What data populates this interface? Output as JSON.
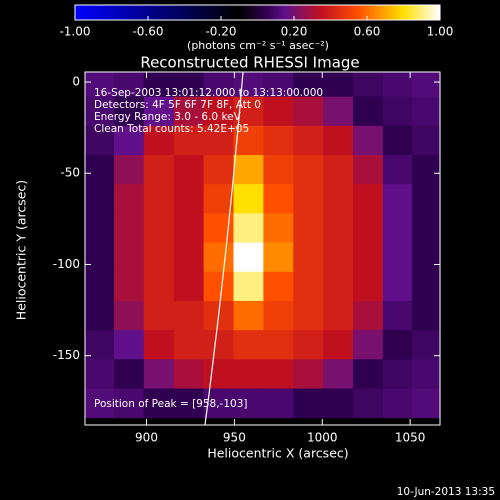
{
  "chart_data": {
    "type": "heatmap",
    "title": "Reconstructed RHESSI Image",
    "x_label": "Heliocentric X (arcsec)",
    "y_label": "Heliocentric Y (arcsec)",
    "colorbar_label": "(photons cm⁻² s⁻¹ asec⁻²)",
    "clim": [
      -1,
      1
    ],
    "cticks": [
      {
        "value": -1,
        "label": "-1.00"
      },
      {
        "value": -0.6,
        "label": "-0.60"
      },
      {
        "value": -0.2,
        "label": "-0.20"
      },
      {
        "value": 0.2,
        "label": "0.20"
      },
      {
        "value": 0.6,
        "label": "0.60"
      },
      {
        "value": 1,
        "label": "1.00"
      }
    ],
    "colorscale": [
      [
        -1,
        "#0000ff"
      ],
      [
        -0.1,
        "#000000"
      ],
      [
        0.05,
        "#300050"
      ],
      [
        0.15,
        "#60108a"
      ],
      [
        0.35,
        "#c01020"
      ],
      [
        0.55,
        "#ff5000"
      ],
      [
        0.8,
        "#ffe000"
      ],
      [
        1,
        "#ffffff"
      ]
    ],
    "xlim": [
      865,
      1067
    ],
    "ylim": [
      -188,
      5.5
    ],
    "xticks": [
      900,
      950,
      1000,
      1050
    ],
    "yticks": [
      0,
      -50,
      -100,
      -150
    ],
    "x": [
      873,
      890,
      907,
      924,
      941,
      958,
      975,
      992,
      1009,
      1026,
      1043,
      1059
    ],
    "y": [
      0,
      -16,
      -32,
      -48,
      -64,
      -80,
      -96,
      -112,
      -128,
      -144,
      -160,
      -176
    ],
    "z": [
      [
        0.12,
        0.1,
        0.05,
        0.05,
        0.1,
        0.12,
        0.1,
        0.05,
        0.05,
        0.08,
        0.1,
        0.12
      ],
      [
        0.1,
        0.05,
        0.15,
        0.3,
        0.35,
        0.4,
        0.35,
        0.3,
        0.2,
        0.05,
        0.08,
        0.1
      ],
      [
        0.08,
        0.15,
        0.35,
        0.4,
        0.4,
        0.5,
        0.45,
        0.4,
        0.35,
        0.2,
        0.05,
        0.08
      ],
      [
        0.05,
        0.25,
        0.4,
        0.35,
        0.45,
        0.7,
        0.5,
        0.45,
        0.4,
        0.3,
        0.1,
        0.05
      ],
      [
        0.05,
        0.3,
        0.4,
        0.35,
        0.5,
        0.8,
        0.55,
        0.45,
        0.4,
        0.35,
        0.15,
        0.05
      ],
      [
        0.05,
        0.3,
        0.4,
        0.35,
        0.55,
        0.9,
        0.6,
        0.45,
        0.4,
        0.35,
        0.15,
        0.05
      ],
      [
        0.05,
        0.3,
        0.4,
        0.35,
        0.6,
        1.0,
        0.65,
        0.45,
        0.4,
        0.35,
        0.15,
        0.05
      ],
      [
        0.05,
        0.3,
        0.4,
        0.35,
        0.55,
        0.9,
        0.55,
        0.45,
        0.4,
        0.35,
        0.15,
        0.05
      ],
      [
        0.05,
        0.25,
        0.4,
        0.4,
        0.45,
        0.6,
        0.5,
        0.45,
        0.4,
        0.3,
        0.1,
        0.05
      ],
      [
        0.08,
        0.15,
        0.35,
        0.4,
        0.4,
        0.45,
        0.45,
        0.4,
        0.35,
        0.2,
        0.05,
        0.08
      ],
      [
        0.1,
        0.05,
        0.2,
        0.3,
        0.35,
        0.35,
        0.35,
        0.3,
        0.2,
        0.05,
        0.08,
        0.1
      ],
      [
        0.12,
        0.1,
        0.05,
        0.05,
        0.1,
        0.1,
        0.1,
        0.05,
        0.05,
        0.08,
        0.1,
        0.12
      ]
    ],
    "annotations": [
      "16-Sep-2003 13:01:12.000 to 13:13:00.000",
      "Detectors: 4F 5F 6F 7F 8F, Att 0",
      "Energy Range: 3.0 - 6.0 keV",
      "Clean    Total counts: 5.42E+05"
    ],
    "peak_label": "Position of Peak = [958,-103]",
    "footer": "10-Jun-2013 13:35"
  }
}
